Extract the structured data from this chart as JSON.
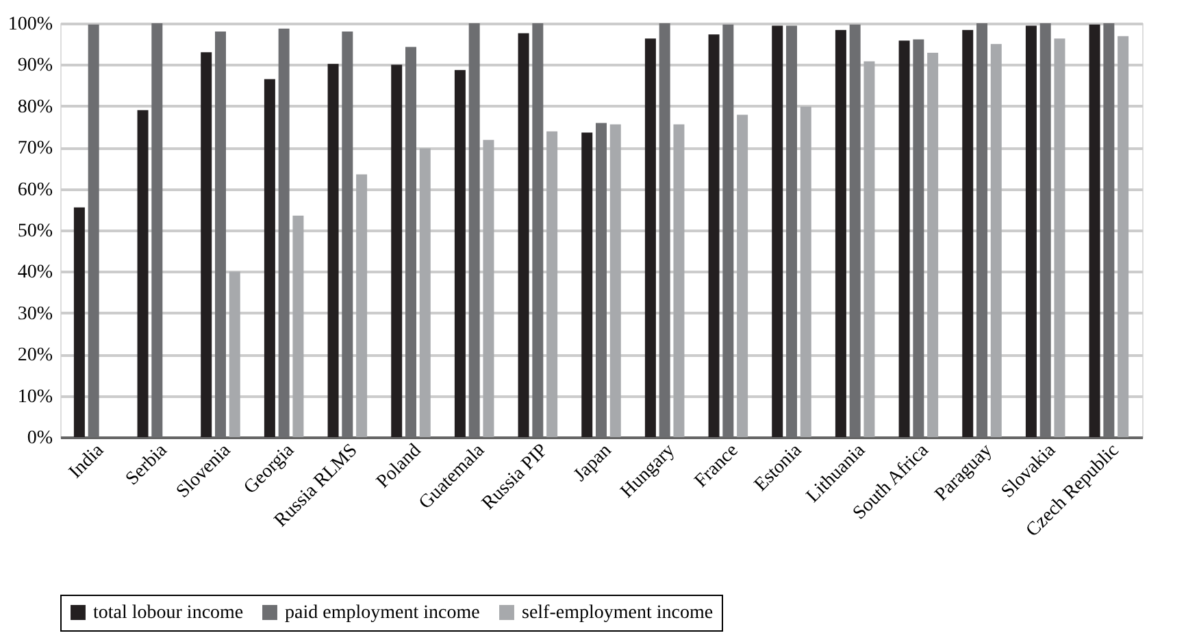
{
  "chart_data": {
    "type": "bar",
    "categories": [
      "India",
      "Serbia",
      "Slovenia",
      "Georgia",
      "Russia RLMS",
      "Poland",
      "Guatemala",
      "Russia PIP",
      "Japan",
      "Hungary",
      "France",
      "Estonia",
      "Lithuania",
      "South Africa",
      "Paraguay",
      "Slovakia",
      "Czech Republic"
    ],
    "series": [
      {
        "name": "total lobour income",
        "color": "#231f20",
        "values": [
          55.5,
          79,
          93,
          86.5,
          90.2,
          90,
          88.7,
          97.6,
          73.6,
          96.3,
          97.3,
          99.4,
          98.4,
          95.8,
          98.4,
          99.4,
          99.7
        ]
      },
      {
        "name": "paid employment income",
        "color": "#6d6e71",
        "values": [
          99.7,
          100,
          98,
          98.7,
          98,
          94.3,
          100,
          100,
          75.9,
          100,
          99.7,
          99.4,
          99.7,
          96.1,
          100,
          100,
          100
        ]
      },
      {
        "name": "self-employment income",
        "color": "#a7a9ac",
        "values": [
          null,
          null,
          40,
          53.5,
          63.5,
          69.8,
          71.8,
          73.9,
          75.6,
          75.6,
          77.9,
          79.9,
          90.8,
          92.9,
          95,
          96.3,
          96.9
        ]
      }
    ],
    "ylim": [
      0,
      100
    ],
    "yticks": [
      {
        "value": 0,
        "label": "0%"
      },
      {
        "value": 10,
        "label": "10%"
      },
      {
        "value": 20,
        "label": "20%"
      },
      {
        "value": 30,
        "label": "30%"
      },
      {
        "value": 40,
        "label": "40%"
      },
      {
        "value": 50,
        "label": "50%"
      },
      {
        "value": 60,
        "label": "60%"
      },
      {
        "value": 70,
        "label": "70%"
      },
      {
        "value": 80,
        "label": "80%"
      },
      {
        "value": 90,
        "label": "90%"
      },
      {
        "value": 100,
        "label": "100%"
      }
    ],
    "grid": "y",
    "legend": "bottom"
  }
}
